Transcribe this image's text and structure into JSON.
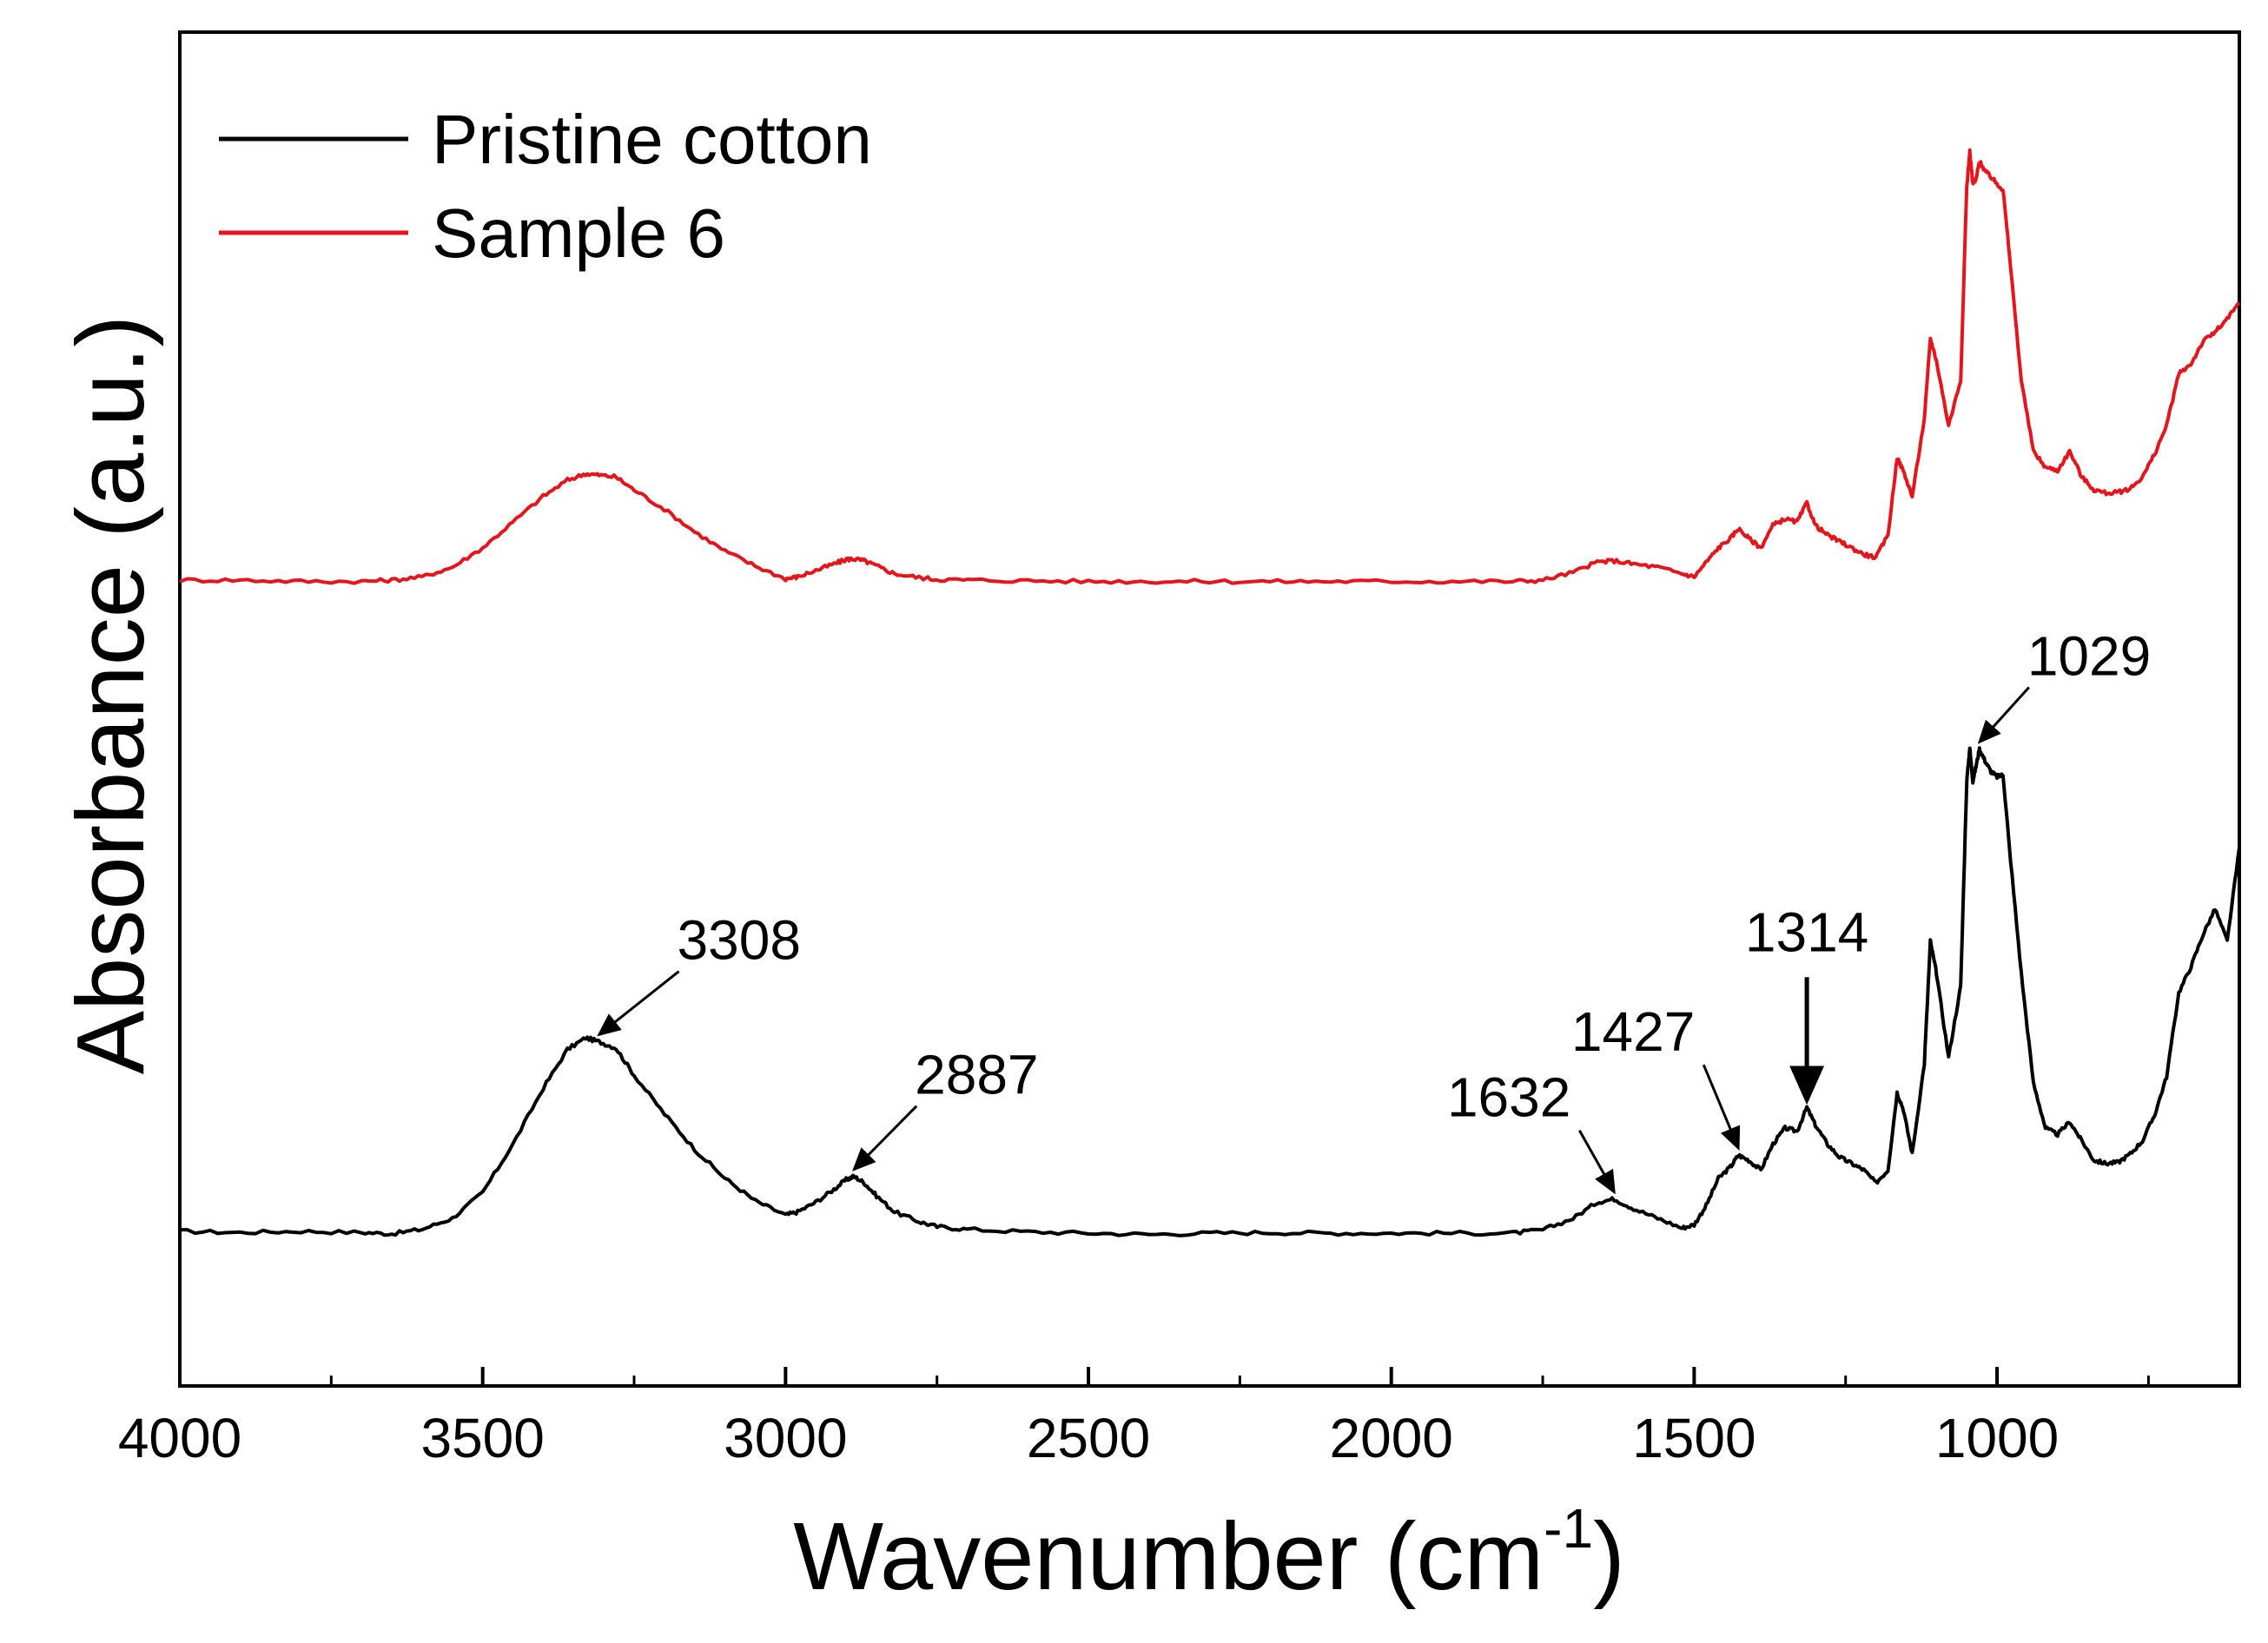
{
  "chart_data": {
    "type": "line",
    "title": "",
    "xlabel": "Wavenumber (cm",
    "xlabel_sup": "-1",
    "xlabel_close": ")",
    "ylabel": "Absorbance (a.u.)",
    "xlim": [
      4000,
      600
    ],
    "ylim": [
      0,
      10
    ],
    "x_reversed": true,
    "xticks": [
      4000,
      3500,
      3000,
      2500,
      2000,
      1500,
      1000
    ],
    "xtick_labels": [
      "4000",
      "3500",
      "3000",
      "2500",
      "2000",
      "1500",
      "1000"
    ],
    "yticks_shown": false,
    "legend_position": "top-left",
    "series": [
      {
        "name": "Pristine cotton",
        "color": "#000000",
        "x": [
          4000,
          3900,
          3800,
          3700,
          3650,
          3600,
          3550,
          3500,
          3450,
          3400,
          3360,
          3330,
          3308,
          3280,
          3250,
          3200,
          3150,
          3100,
          3050,
          3000,
          2980,
          2950,
          2920,
          2900,
          2887,
          2870,
          2850,
          2820,
          2780,
          2750,
          2700,
          2600,
          2500,
          2400,
          2300,
          2200,
          2100,
          2000,
          1900,
          1800,
          1750,
          1700,
          1660,
          1632,
          1600,
          1560,
          1520,
          1500,
          1480,
          1460,
          1440,
          1427,
          1410,
          1390,
          1370,
          1350,
          1330,
          1314,
          1300,
          1280,
          1260,
          1240,
          1220,
          1200,
          1180,
          1165,
          1155,
          1140,
          1120,
          1110,
          1100,
          1080,
          1060,
          1050,
          1045,
          1040,
          1035,
          1029,
          1020,
          1010,
          1000,
          990,
          980,
          960,
          940,
          920,
          900,
          880,
          860,
          840,
          820,
          800,
          780,
          760,
          740,
          720,
          700,
          680,
          660,
          640,
          620,
          600
        ],
        "y": [
          0.6,
          0.58,
          0.6,
          0.58,
          0.56,
          0.63,
          0.8,
          1.2,
          1.95,
          2.82,
          3.42,
          3.6,
          3.54,
          3.44,
          3.02,
          2.42,
          1.87,
          1.42,
          1.07,
          0.85,
          0.9,
          1.05,
          1.25,
          1.4,
          1.45,
          1.35,
          1.15,
          0.9,
          0.75,
          0.67,
          0.63,
          0.59,
          0.57,
          0.55,
          0.57,
          0.58,
          0.57,
          0.57,
          0.57,
          0.57,
          0.62,
          0.8,
          1.05,
          1.1,
          0.95,
          0.8,
          0.65,
          0.7,
          1.0,
          1.42,
          1.6,
          1.78,
          1.7,
          1.55,
          1.95,
          2.2,
          2.15,
          2.52,
          2.25,
          1.95,
          1.75,
          1.65,
          1.55,
          1.35,
          1.55,
          2.75,
          2.5,
          1.8,
          3.2,
          5.1,
          4.6,
          3.3,
          4.4,
          7.58,
          8.1,
          7.58,
          7.8,
          8.08,
          7.9,
          7.73,
          7.65,
          7.68,
          6.6,
          4.6,
          2.9,
          2.2,
          2.1,
          2.3,
          2.0,
          1.7,
          1.65,
          1.67,
          1.8,
          2.0,
          2.4,
          3.0,
          4.3,
          4.7,
          5.2,
          5.6,
          5.1,
          6.55
        ]
      },
      {
        "name": "Sample 6",
        "color": "#e8141b",
        "x": [
          4000,
          3900,
          3800,
          3700,
          3650,
          3600,
          3550,
          3500,
          3450,
          3400,
          3360,
          3330,
          3308,
          3280,
          3250,
          3200,
          3150,
          3100,
          3050,
          3000,
          2980,
          2950,
          2920,
          2900,
          2887,
          2870,
          2850,
          2820,
          2780,
          2750,
          2700,
          2600,
          2500,
          2400,
          2300,
          2200,
          2100,
          2000,
          1900,
          1800,
          1750,
          1700,
          1660,
          1632,
          1600,
          1560,
          1520,
          1500,
          1480,
          1460,
          1440,
          1427,
          1410,
          1390,
          1370,
          1350,
          1330,
          1314,
          1300,
          1280,
          1260,
          1240,
          1220,
          1200,
          1180,
          1165,
          1155,
          1140,
          1120,
          1110,
          1100,
          1080,
          1060,
          1050,
          1045,
          1040,
          1035,
          1029,
          1020,
          1010,
          1000,
          990,
          980,
          960,
          940,
          920,
          900,
          880,
          860,
          840,
          820,
          800,
          780,
          760,
          740,
          720,
          700,
          680,
          660,
          640,
          620,
          600
        ],
        "y": [
          10.7,
          10.7,
          10.68,
          10.68,
          10.7,
          10.75,
          10.9,
          11.2,
          11.6,
          12.0,
          12.25,
          12.35,
          12.33,
          12.3,
          12.1,
          11.8,
          11.45,
          11.15,
          10.92,
          10.72,
          10.75,
          10.85,
          10.95,
          11.02,
          11.03,
          11.0,
          10.92,
          10.8,
          10.74,
          10.71,
          10.7,
          10.69,
          10.68,
          10.68,
          10.68,
          10.68,
          10.68,
          10.68,
          10.68,
          10.68,
          10.7,
          10.82,
          10.98,
          11.0,
          10.95,
          10.9,
          10.8,
          10.75,
          10.98,
          11.2,
          11.35,
          11.5,
          11.35,
          11.2,
          11.55,
          11.65,
          11.6,
          11.9,
          11.55,
          11.4,
          11.3,
          11.2,
          11.1,
          11.05,
          11.4,
          12.6,
          12.4,
          12.0,
          13.2,
          14.45,
          14.1,
          13.1,
          13.8,
          16.8,
          17.35,
          16.85,
          16.9,
          17.2,
          17.05,
          16.95,
          16.85,
          16.75,
          15.8,
          13.8,
          12.7,
          12.45,
          12.4,
          12.7,
          12.3,
          12.1,
          12.05,
          12.06,
          12.12,
          12.3,
          12.65,
          13.1,
          13.9,
          14.05,
          14.4,
          14.55,
          14.75,
          15.0
        ]
      }
    ],
    "annotations": [
      {
        "label": "3308",
        "x": 3308,
        "y": 3.54
      },
      {
        "label": "2887",
        "x": 2887,
        "y": 1.45
      },
      {
        "label": "1632",
        "x": 1632,
        "y": 1.1
      },
      {
        "label": "1427",
        "x": 1427,
        "y": 1.78
      },
      {
        "label": "1314",
        "x": 1314,
        "y": 2.52
      },
      {
        "label": "1029",
        "x": 1029,
        "y": 8.08
      }
    ]
  }
}
